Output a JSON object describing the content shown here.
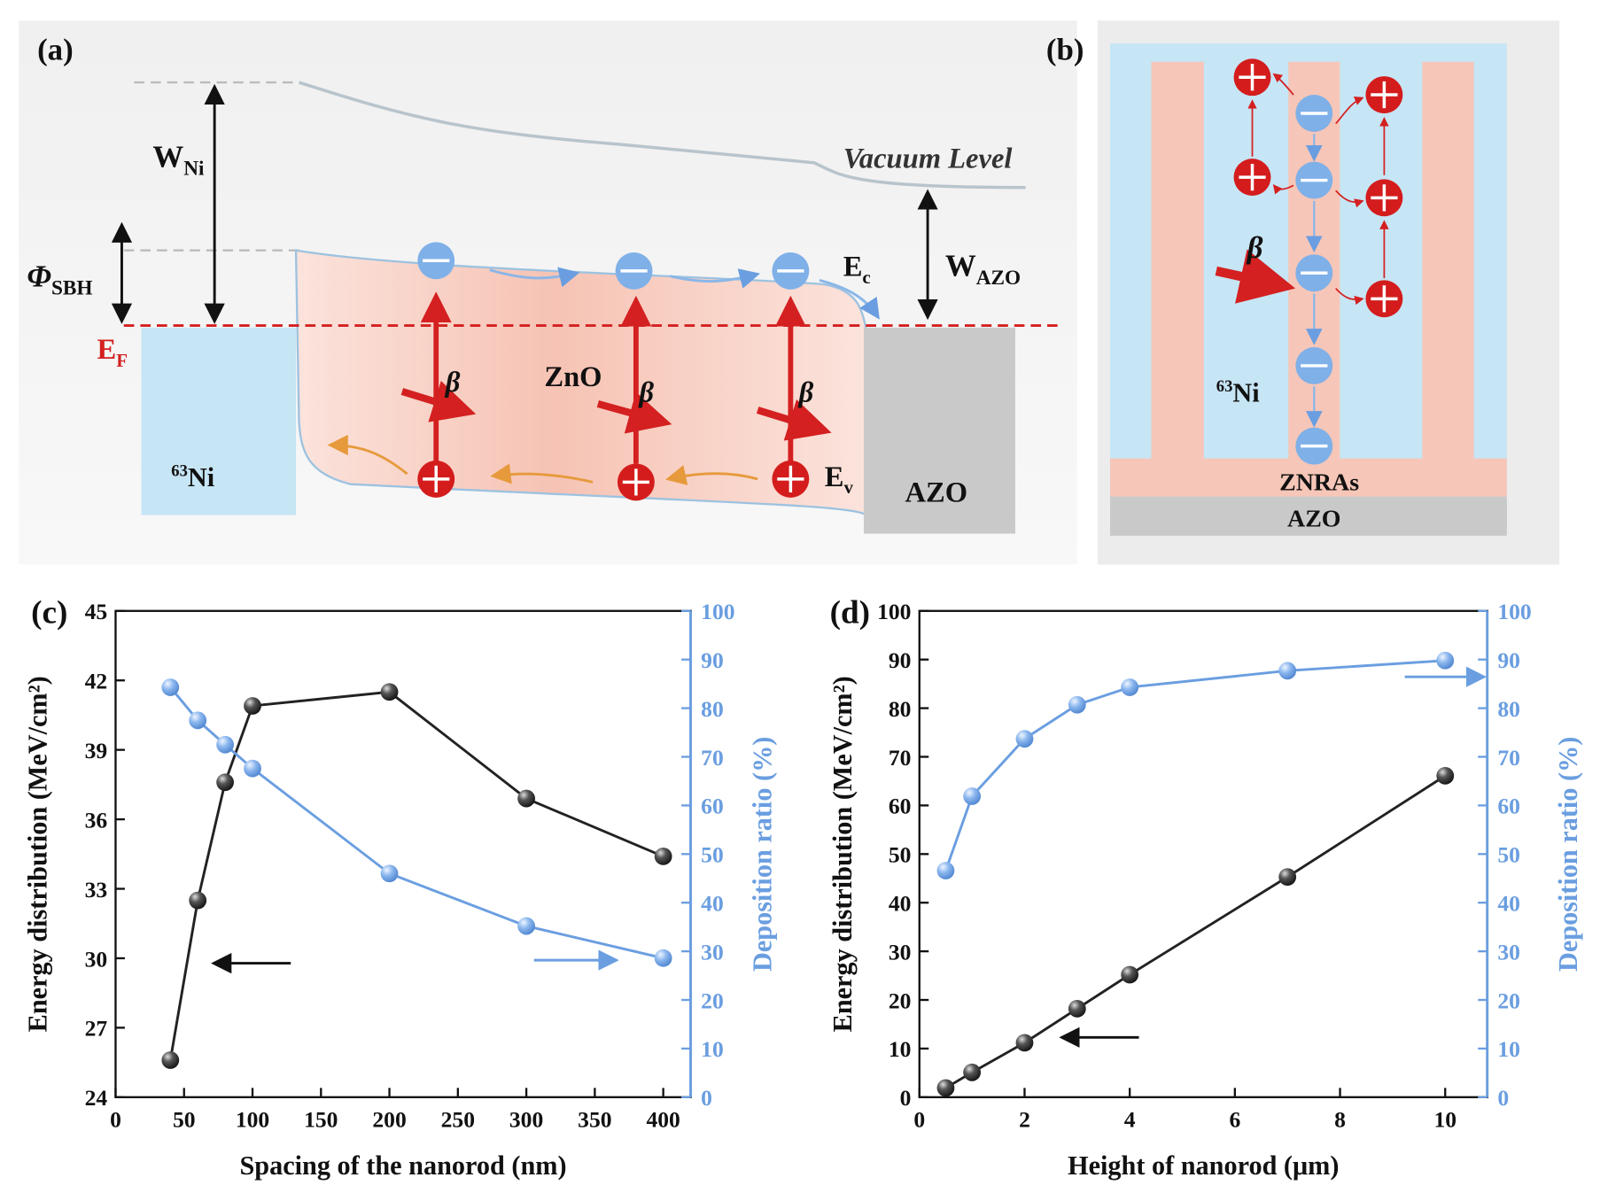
{
  "panel_a": {
    "label": "(a)",
    "w_ni": {
      "text": "W",
      "sub": "Ni"
    },
    "phi_sbh": {
      "text": "Φ",
      "sub": "SBH"
    },
    "e_f": {
      "text": "E",
      "sub": "F"
    },
    "vacuum_level": "Vacuum Level",
    "w_azo": {
      "text": "W",
      "sub": "AZO"
    },
    "e_c": {
      "text": "E",
      "sub": "c"
    },
    "e_v": {
      "text": "E",
      "sub": "v"
    },
    "zno": "ZnO",
    "beta": "β",
    "ni": {
      "sup": "63",
      "text": "Ni"
    },
    "azo": "AZO"
  },
  "panel_b": {
    "label": "(b)",
    "beta": "β",
    "ni": {
      "sup": "63",
      "text": "Ni"
    },
    "znras": "ZNRAs",
    "azo": "AZO"
  },
  "chart_data": [
    {
      "type": "line",
      "title": "(c)",
      "x_label": "Spacing of the nanorod (nm)",
      "y_label": "Energy  distribution (MeV/cm²)",
      "y2_label": "Deposition ratio (%)",
      "x": [
        40,
        60,
        80,
        100,
        200,
        300,
        400
      ],
      "xlim": [
        0,
        420
      ],
      "xticks": [
        0,
        50,
        100,
        150,
        200,
        250,
        300,
        350,
        400
      ],
      "ylim": [
        24,
        45
      ],
      "yticks": [
        24,
        27,
        30,
        33,
        36,
        39,
        42,
        45
      ],
      "y2lim": [
        0,
        100
      ],
      "y2ticks": [
        0,
        10,
        20,
        30,
        40,
        50,
        60,
        70,
        80,
        90,
        100
      ],
      "series": [
        {
          "color": "#222222",
          "values": [
            25.6,
            32.5,
            37.6,
            40.9,
            41.5,
            36.9,
            34.4
          ]
        },
        {
          "color": "#6a9ee0",
          "axis": "y2",
          "values": [
            84.3,
            77.5,
            72.5,
            67.6,
            46,
            35.2,
            28.6
          ]
        }
      ]
    },
    {
      "type": "line",
      "title": "(d)",
      "x_label": "Height of nanorod  (μm)",
      "y_label": "Energy distribution (MeV/cm²)",
      "y2_label": "Deposition ratio (%)",
      "x": [
        0.5,
        1,
        2,
        3,
        4,
        7,
        10
      ],
      "xlim": [
        0,
        10.8
      ],
      "xticks": [
        0,
        2,
        4,
        6,
        8,
        10
      ],
      "ylim": [
        0,
        100
      ],
      "yticks": [
        0,
        10,
        20,
        30,
        40,
        50,
        60,
        70,
        80,
        90,
        100
      ],
      "y2lim": [
        0,
        100
      ],
      "y2ticks": [
        0,
        10,
        20,
        30,
        40,
        50,
        60,
        70,
        80,
        90,
        100
      ],
      "series": [
        {
          "color": "#222222",
          "values": [
            1.9,
            5.1,
            11.2,
            18.2,
            25.2,
            45.3,
            66.1
          ]
        },
        {
          "color": "#6a9ee0",
          "axis": "y2",
          "values": [
            46.6,
            61.9,
            73.7,
            80.7,
            84.3,
            87.7,
            89.8
          ]
        }
      ]
    }
  ]
}
